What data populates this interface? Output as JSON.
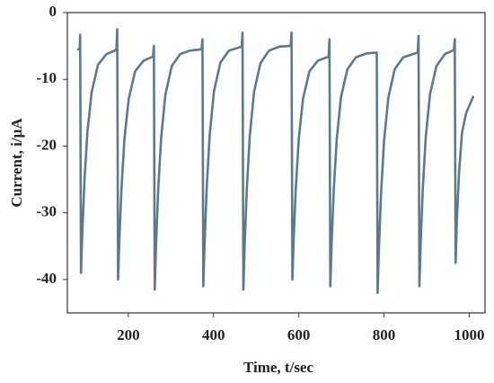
{
  "chart_data": {
    "type": "line",
    "xlabel": "Time, t/sec",
    "ylabel": "Current, i/µA",
    "xlim": [
      57,
      1037
    ],
    "ylim": [
      -45,
      0
    ],
    "xticks": [
      200,
      400,
      600,
      800,
      1000
    ],
    "yticks": [
      0,
      -10,
      -20,
      -30,
      -40
    ],
    "grid": false,
    "series": [
      {
        "name": "current",
        "color": "#5b7a8c",
        "x": [
          80,
          86,
          87,
          89,
          92,
          97,
          104,
          114,
          129,
          149,
          172,
          174,
          176,
          179,
          184,
          191,
          201,
          216,
          236,
          258,
          260,
          262,
          265,
          270,
          277,
          287,
          302,
          322,
          345,
          372,
          374,
          376,
          379,
          384,
          391,
          401,
          416,
          436,
          466,
          468,
          470,
          473,
          478,
          485,
          495,
          510,
          530,
          555,
          581,
          583,
          585,
          588,
          593,
          600,
          610,
          625,
          645,
          670,
          672,
          674,
          677,
          682,
          689,
          699,
          714,
          734,
          760,
          781,
          783,
          785,
          788,
          793,
          800,
          810,
          825,
          845,
          879,
          881,
          883,
          886,
          891,
          898,
          908,
          923,
          943,
          964,
          966,
          968,
          971,
          976,
          983,
          993,
          1003,
          1010
        ],
        "values": [
          -5.5,
          -5.5,
          -3.3,
          -39,
          -33,
          -25.3,
          -17.9,
          -11.9,
          -7.8,
          -6.2,
          -5.6,
          -2.5,
          -40,
          -34,
          -26.3,
          -18.9,
          -12.9,
          -8.8,
          -7.2,
          -6.6,
          -5,
          -41.5,
          -35,
          -26.7,
          -18.8,
          -12.3,
          -8,
          -6.2,
          -5.7,
          -5.5,
          -4,
          -41,
          -34.5,
          -26.2,
          -18.3,
          -11.8,
          -7.5,
          -5.7,
          -5.1,
          -3,
          -41.5,
          -34.9,
          -26.5,
          -18.5,
          -11.9,
          -7.6,
          -5.7,
          -5.1,
          -5,
          -3,
          -40,
          -34,
          -26.3,
          -18.9,
          -12.9,
          -8.8,
          -7.2,
          -6.6,
          -4,
          -41,
          -34.7,
          -26.7,
          -19,
          -12.7,
          -8.5,
          -6.7,
          -6.1,
          -6,
          -6,
          -42,
          -35.5,
          -27.2,
          -19.3,
          -12.8,
          -8.5,
          -6.7,
          -6,
          -3.5,
          -41,
          -34.6,
          -26.4,
          -18.6,
          -12.2,
          -8,
          -6.2,
          -5.6,
          -4,
          -37.5,
          -31,
          -24,
          -18,
          -15,
          -13.5,
          -12.5
        ]
      }
    ]
  }
}
